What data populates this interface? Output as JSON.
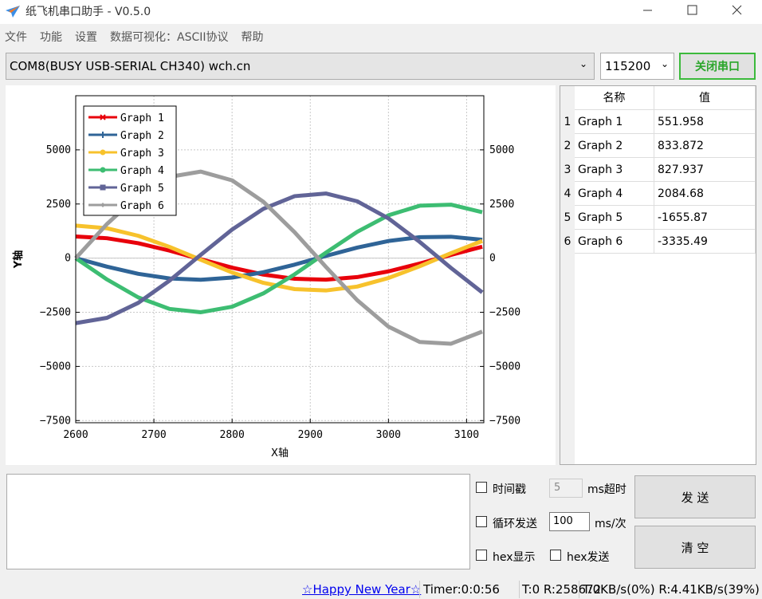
{
  "window": {
    "title": "纸飞机串口助手 - V0.5.0"
  },
  "menu": [
    "文件",
    "功能",
    "设置",
    "数据可视化：ASCII协议",
    "帮助"
  ],
  "toolbar": {
    "port": "COM8(BUSY  USB-SERIAL CH340) wch.cn",
    "baud": "115200",
    "open_button": "关闭串口"
  },
  "table": {
    "headers": [
      "名称",
      "值"
    ],
    "rows": [
      [
        1,
        "Graph 1",
        551.958
      ],
      [
        2,
        "Graph 2",
        833.872
      ],
      [
        3,
        "Graph 3",
        827.937
      ],
      [
        4,
        "Graph 4",
        2084.68
      ],
      [
        5,
        "Graph 5",
        -1655.87
      ],
      [
        6,
        "Graph 6",
        -3335.49
      ]
    ]
  },
  "send": {
    "timestamp": "时间戳",
    "timeout_value": "5",
    "timeout_unit": "ms超时",
    "loop_send": "循环发送",
    "interval": "100",
    "interval_unit": "ms/次",
    "hex_display": "hex显示",
    "hex_send": "hex发送",
    "send_button": "发 送",
    "clear_button": "清 空"
  },
  "status": {
    "link": "☆Happy New Year☆",
    "timer": "Timer:0:0:56",
    "counts": "T:0 R:258672",
    "rates": "T:0KB/s(0%) R:4.41KB/s(39%)"
  },
  "chart_data": {
    "type": "line",
    "x_label": "X轴",
    "y_label": "Y轴",
    "grid": true,
    "legend": "upper left",
    "xlim": [
      2600,
      3122
    ],
    "ylim": [
      -7600,
      7500
    ],
    "xticks": [
      2600,
      2700,
      2800,
      2900,
      3000,
      3100
    ],
    "yticks": [
      5000,
      2500,
      0,
      {
        "value": -2500,
        "label": "−2500"
      },
      {
        "value": -5000,
        "label": "−5000"
      },
      {
        "value": -7500,
        "label": "−7500"
      }
    ],
    "x": [
      2600,
      2640,
      2680,
      2720,
      2760,
      2800,
      2840,
      2880,
      2920,
      2960,
      3000,
      3040,
      3080,
      3120
    ],
    "series": [
      {
        "name": "Graph 1",
        "color": "#e8000b",
        "marker": "x",
        "values": [
          1000,
          919,
          688,
          346,
          -51,
          -440,
          -759,
          -954,
          -995,
          -875,
          -612,
          -250,
          151,
          528
        ]
      },
      {
        "name": "Graph 2",
        "color": "#2f6497",
        "marker": "+",
        "values": [
          0,
          -394,
          -725,
          -938,
          -999,
          -898,
          -651,
          -299,
          101,
          485,
          791,
          968,
          988,
          848
        ]
      },
      {
        "name": "Graph 3",
        "color": "#f7c22c",
        "marker": "circle",
        "values": [
          1500,
          1379,
          1032,
          519,
          -77,
          -660,
          -1139,
          -1431,
          -1493,
          -1313,
          -918,
          -375,
          227,
          792
        ]
      },
      {
        "name": "Graph 4",
        "color": "#3dbd72",
        "marker": "circle",
        "values": [
          0,
          -985,
          -1813,
          -2345,
          -2498,
          -2245,
          -1628,
          -748,
          253,
          1213,
          1978,
          2420,
          2470,
          2120
        ]
      },
      {
        "name": "Graph 5",
        "color": "#616497",
        "marker": "square",
        "values": [
          -3000,
          -2757,
          -2064,
          -1038,
          153,
          1320,
          2277,
          2862,
          2985,
          2625,
          1836,
          750,
          -453,
          -1584
        ]
      },
      {
        "name": "Graph 6",
        "color": "#9d9d9d",
        "marker": "diamond",
        "values": [
          0,
          1576,
          2900,
          3752,
          3996,
          3592,
          2604,
          1196,
          -404,
          -1940,
          -3164,
          -3872,
          -3952,
          -3392
        ]
      }
    ]
  }
}
